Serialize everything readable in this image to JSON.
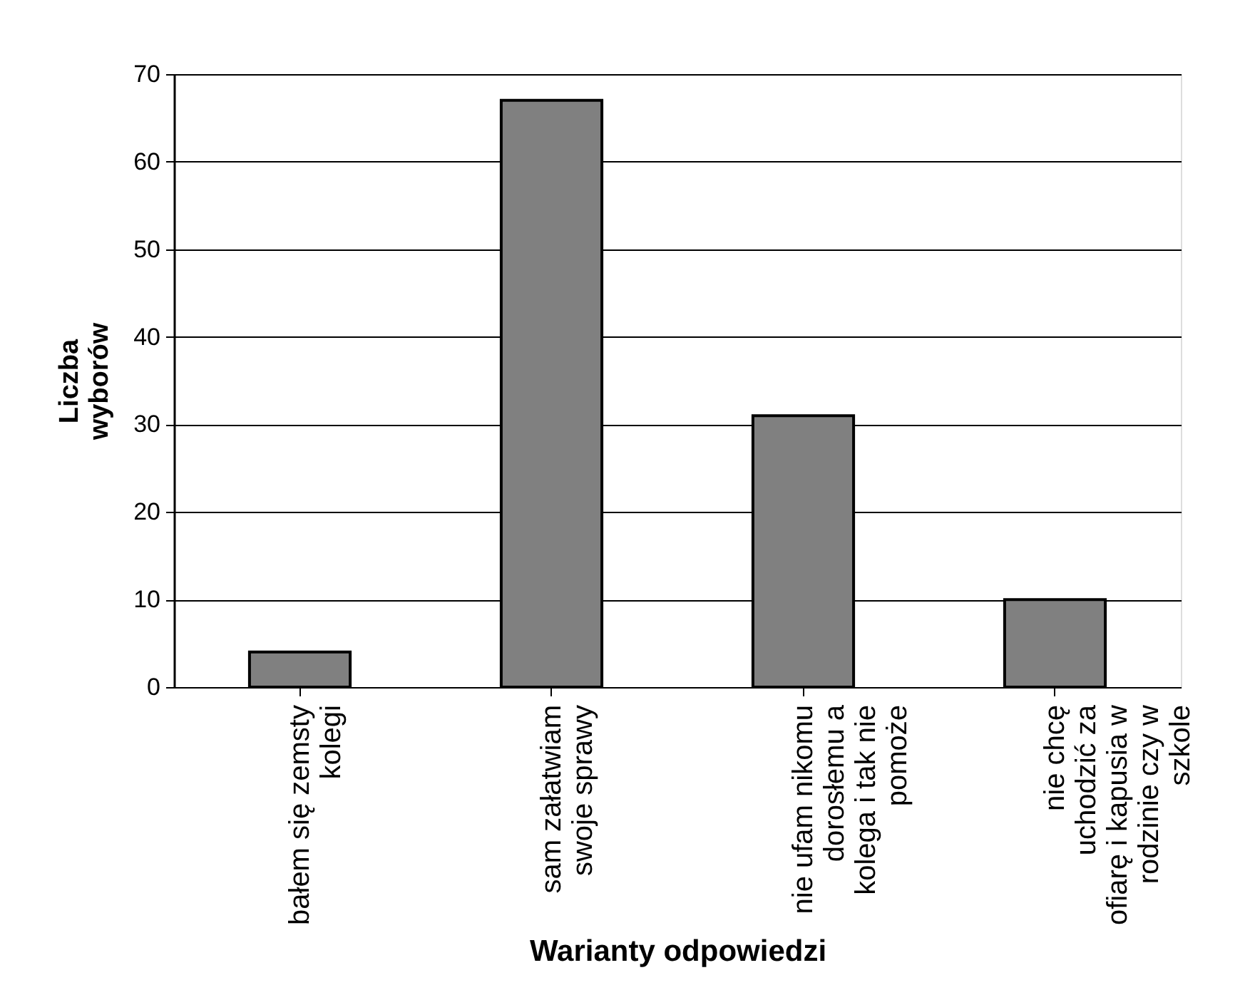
{
  "chart_data": {
    "type": "bar",
    "xlabel": "Warianty odpowiedzi",
    "ylabel": "Liczba wyborów",
    "categories": [
      "bałem się zemsty kolegi",
      "sam załatwiam swoje sprawy",
      "nie ufam nikomu dorosłemu a kolega i tak nie pomoże",
      "nie chcę uchodzić za ofiarę i kapusia w rodzinie czy w szkole"
    ],
    "values": [
      4,
      67,
      31,
      10
    ],
    "color": "#808080",
    "ylim": [
      0,
      70
    ],
    "yticks": [
      0,
      10,
      20,
      30,
      40,
      50,
      60,
      70
    ],
    "grid": "y"
  }
}
